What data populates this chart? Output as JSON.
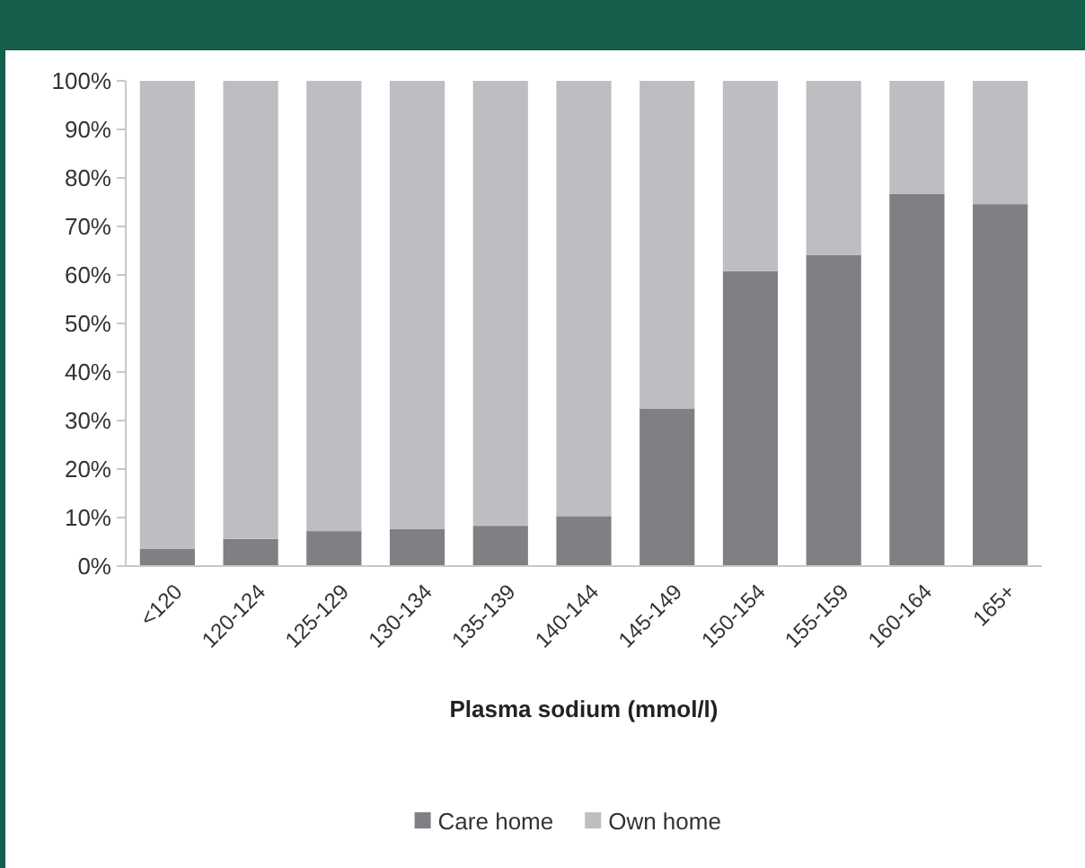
{
  "chart_data": {
    "type": "bar",
    "stacked": true,
    "xlabel": "Plasma sodium (mmol/l)",
    "categories": [
      "<120",
      "120-124",
      "125-129",
      "130-134",
      "135-139",
      "140-144",
      "145-149",
      "150-154",
      "155-159",
      "160-164",
      "165+"
    ],
    "series": [
      {
        "name": "Care home",
        "color": "#7f8084",
        "values": [
          3.6,
          5.6,
          7.2,
          7.6,
          8.3,
          10.3,
          32.4,
          60.8,
          64.1,
          76.7,
          74.6
        ]
      },
      {
        "name": "Own home",
        "color": "#bdbec2",
        "values": [
          96.4,
          94.4,
          92.8,
          92.4,
          91.7,
          89.7,
          67.6,
          39.2,
          35.9,
          23.3,
          25.4
        ]
      }
    ],
    "ylim": [
      0,
      100
    ],
    "yticks": [
      {
        "value": 0,
        "label": "0%"
      },
      {
        "value": 10,
        "label": "10%"
      },
      {
        "value": 20,
        "label": "20%"
      },
      {
        "value": 30,
        "label": "30%"
      },
      {
        "value": 40,
        "label": "40%"
      },
      {
        "value": 50,
        "label": "50%"
      },
      {
        "value": 60,
        "label": "60%"
      },
      {
        "value": 70,
        "label": "70%"
      },
      {
        "value": 80,
        "label": "80%"
      },
      {
        "value": 90,
        "label": "90%"
      },
      {
        "value": 100,
        "label": "100%"
      }
    ],
    "legend": "bottom"
  }
}
